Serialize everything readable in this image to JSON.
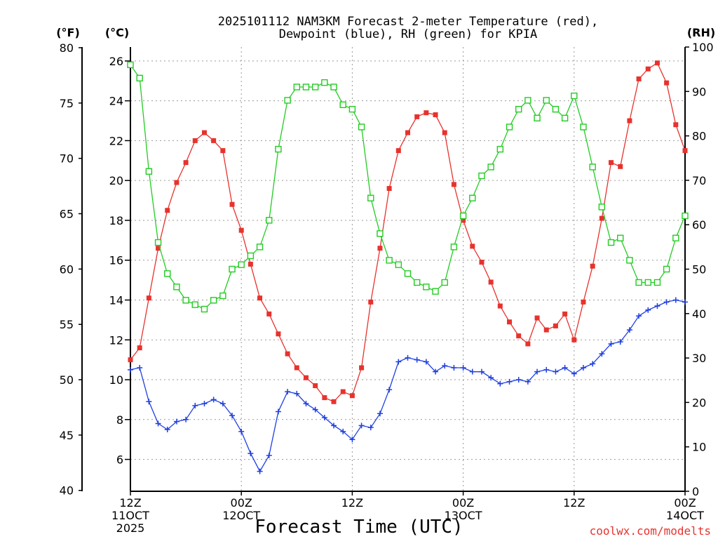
{
  "chart_data": {
    "type": "line",
    "title_lines": [
      "2025101112 NAM3KM Forecast 2-meter Temperature (red),",
      "Dewpoint (blue), RH (green) for KPIA"
    ],
    "xlabel": "Forecast Time (UTC)",
    "credit": "coolwx.com/modelts",
    "units": {
      "fahrenheit": "(°F)",
      "celsius": "(°C)",
      "rh": "(RH)"
    },
    "colors": {
      "temperature": "#e8322d",
      "dewpoint": "#1f3fe0",
      "rh": "#22cc22"
    },
    "x_ticks": [
      {
        "hour": 0,
        "lines": [
          "12Z",
          "11OCT",
          "2025"
        ]
      },
      {
        "hour": 12,
        "lines": [
          "00Z",
          "12OCT"
        ]
      },
      {
        "hour": 24,
        "lines": [
          "12Z"
        ]
      },
      {
        "hour": 36,
        "lines": [
          "00Z",
          "13OCT"
        ]
      },
      {
        "hour": 48,
        "lines": [
          "12Z"
        ]
      },
      {
        "hour": 60,
        "lines": [
          "00Z",
          "14OCT"
        ]
      }
    ],
    "xlim": [
      0,
      60
    ],
    "celsius_ticks": [
      "6",
      "8",
      "10",
      "12",
      "14",
      "16",
      "18",
      "20",
      "22",
      "24",
      "26"
    ],
    "ylim_celsius": [
      4.4,
      26.7
    ],
    "fahrenheit_ticks": [
      "40",
      "45",
      "50",
      "55",
      "60",
      "65",
      "70",
      "75",
      "80"
    ],
    "rh_ticks": [
      "0",
      "10",
      "20",
      "30",
      "40",
      "50",
      "60",
      "70",
      "80",
      "90",
      "100"
    ],
    "ylim_rh": [
      0,
      100
    ],
    "series": [
      {
        "name": "Temperature",
        "axis": "celsius",
        "marker": "filled-square",
        "values": [
          11.0,
          11.6,
          14.1,
          16.6,
          18.5,
          19.9,
          20.9,
          22.0,
          22.4,
          22.0,
          21.5,
          18.8,
          17.5,
          15.8,
          14.1,
          13.3,
          12.3,
          11.3,
          10.6,
          10.1,
          9.7,
          9.1,
          8.9,
          9.4,
          9.2,
          10.6,
          13.9,
          16.6,
          19.6,
          21.5,
          22.4,
          23.2,
          23.4,
          23.3,
          22.4,
          19.8,
          18.0,
          16.7,
          15.9,
          14.9,
          13.7,
          12.9,
          12.2,
          11.8,
          13.1,
          12.5,
          12.7,
          13.3,
          12.0,
          13.9,
          15.7,
          18.1,
          20.9,
          20.7,
          23.0,
          25.1,
          25.6,
          25.9,
          24.9,
          22.8,
          21.5
        ]
      },
      {
        "name": "Dewpoint",
        "axis": "celsius",
        "marker": "plus",
        "values": [
          10.5,
          10.6,
          8.9,
          7.8,
          7.5,
          7.9,
          8.0,
          8.7,
          8.8,
          9.0,
          8.8,
          8.2,
          7.4,
          6.3,
          5.4,
          6.2,
          8.4,
          9.4,
          9.3,
          8.8,
          8.5,
          8.1,
          7.7,
          7.4,
          7.0,
          7.7,
          7.6,
          8.3,
          9.5,
          10.9,
          11.1,
          11.0,
          10.9,
          10.4,
          10.7,
          10.6,
          10.6,
          10.4,
          10.4,
          10.1,
          9.8,
          9.9,
          10.0,
          9.9,
          10.4,
          10.5,
          10.4,
          10.6,
          10.3,
          10.6,
          10.8,
          11.3,
          11.8,
          11.9,
          12.5,
          13.2,
          13.5,
          13.7,
          13.9,
          14.0,
          13.9
        ]
      },
      {
        "name": "RH",
        "axis": "rh",
        "marker": "open-square",
        "values": [
          96,
          93,
          72,
          56,
          49,
          46,
          43,
          42,
          41,
          43,
          44,
          50,
          51,
          53,
          55,
          61,
          77,
          88,
          91,
          91,
          91,
          92,
          91,
          87,
          86,
          82,
          66,
          58,
          52,
          51,
          49,
          47,
          46,
          45,
          47,
          55,
          62,
          66,
          71,
          73,
          77,
          82,
          86,
          88,
          84,
          88,
          86,
          84,
          89,
          82,
          73,
          64,
          56,
          57,
          52,
          47,
          47,
          47,
          50,
          57,
          62
        ]
      }
    ]
  }
}
